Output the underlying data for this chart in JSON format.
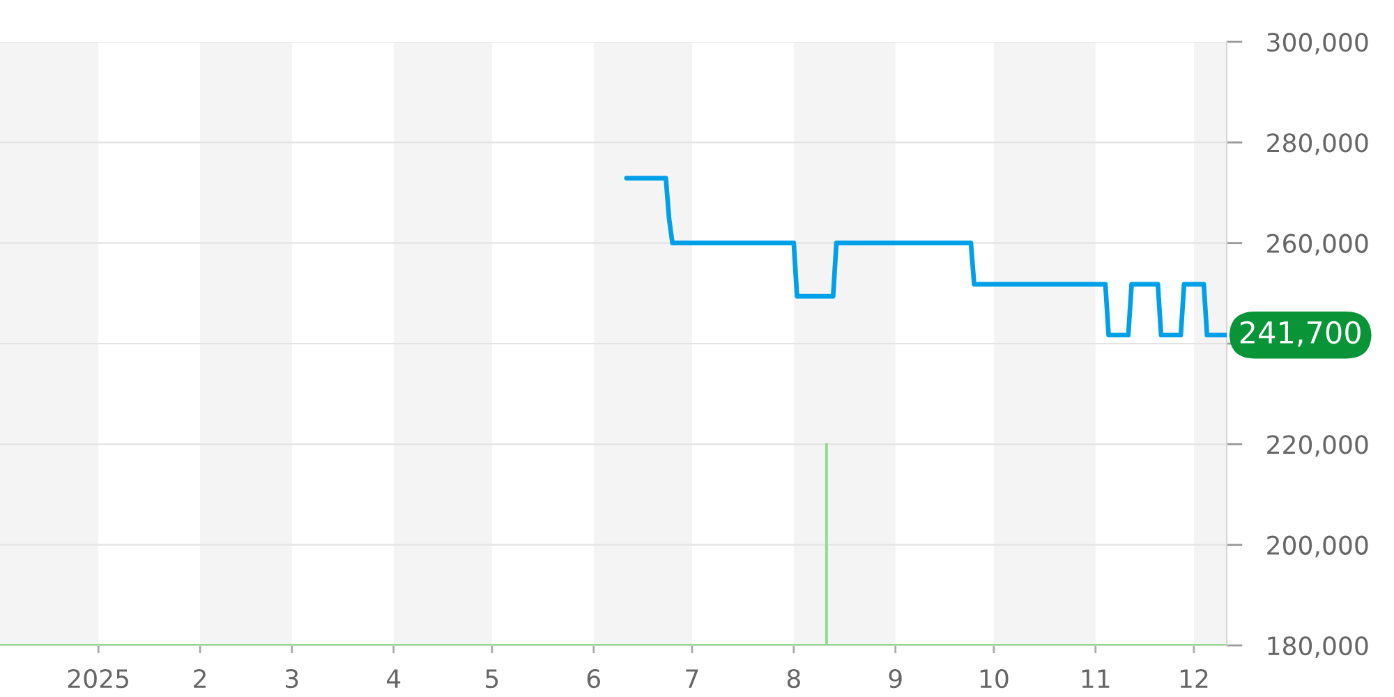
{
  "chart_data": {
    "type": "line",
    "xlim": [
      "2024-12-02",
      "2025-12-11"
    ],
    "xticks": [
      {
        "value": "2025-01-01",
        "label": "2025"
      },
      {
        "value": "2025-02-01",
        "label": "2"
      },
      {
        "value": "2025-03-01",
        "label": "3"
      },
      {
        "value": "2025-04-01",
        "label": "4"
      },
      {
        "value": "2025-05-01",
        "label": "5"
      },
      {
        "value": "2025-06-01",
        "label": "6"
      },
      {
        "value": "2025-07-01",
        "label": "7"
      },
      {
        "value": "2025-08-01",
        "label": "8"
      },
      {
        "value": "2025-09-01",
        "label": "9"
      },
      {
        "value": "2025-10-01",
        "label": "10"
      },
      {
        "value": "2025-11-01",
        "label": "11"
      },
      {
        "value": "2025-12-01",
        "label": "12"
      }
    ],
    "ylim": [
      180000,
      300000
    ],
    "yticks": [
      {
        "value": 180000,
        "label": "180,000"
      },
      {
        "value": 200000,
        "label": "200,000"
      },
      {
        "value": 220000,
        "label": "220,000"
      },
      {
        "value": 240000,
        "label": null
      },
      {
        "value": 260000,
        "label": "260,000"
      },
      {
        "value": 280000,
        "label": "280,000"
      },
      {
        "value": 300000,
        "label": "300,000"
      }
    ],
    "series": [
      {
        "color": "#00a0e9",
        "x": [
          "2025-06-11",
          "2025-06-23",
          "2025-06-24",
          "2025-06-25",
          "2025-08-01",
          "2025-08-02",
          "2025-08-13",
          "2025-08-14",
          "2025-09-24",
          "2025-09-25",
          "2025-11-04",
          "2025-11-05",
          "2025-11-11",
          "2025-11-12",
          "2025-11-20",
          "2025-11-21",
          "2025-11-27",
          "2025-11-28",
          "2025-12-04",
          "2025-12-05",
          "2025-12-11"
        ],
        "values": [
          272900,
          272900,
          264800,
          260000,
          260000,
          249400,
          249400,
          260000,
          260000,
          251800,
          251800,
          241700,
          241700,
          251800,
          251800,
          241700,
          241700,
          251800,
          251800,
          241700,
          241700
        ]
      },
      {
        "color": "#8fdc8f",
        "x": [
          "2024-12-02",
          "2025-08-11",
          "2025-08-11",
          "2025-08-11",
          "2025-12-11"
        ],
        "values": [
          180000,
          180000,
          220000,
          180000,
          180000
        ]
      }
    ],
    "bands": [
      {
        "axis": "x",
        "from": "2024-12-02",
        "to": "2025-01-01",
        "color": "#f4f4f4"
      },
      {
        "axis": "x",
        "from": "2025-02-01",
        "to": "2025-03-01",
        "color": "#f4f4f4"
      },
      {
        "axis": "x",
        "from": "2025-04-01",
        "to": "2025-05-01",
        "color": "#f4f4f4"
      },
      {
        "axis": "x",
        "from": "2025-06-01",
        "to": "2025-07-01",
        "color": "#f4f4f4"
      },
      {
        "axis": "x",
        "from": "2025-08-01",
        "to": "2025-09-01",
        "color": "#f4f4f4"
      },
      {
        "axis": "x",
        "from": "2025-10-01",
        "to": "2025-11-01",
        "color": "#f4f4f4"
      },
      {
        "axis": "x",
        "from": "2025-12-01",
        "to": "2025-12-11",
        "color": "#f4f4f4"
      }
    ],
    "annotations": [
      {
        "text": "241,700",
        "x": "2025-12-11",
        "y": 241700
      }
    ],
    "grid": "y",
    "marker": "none",
    "line_style": "solid"
  }
}
